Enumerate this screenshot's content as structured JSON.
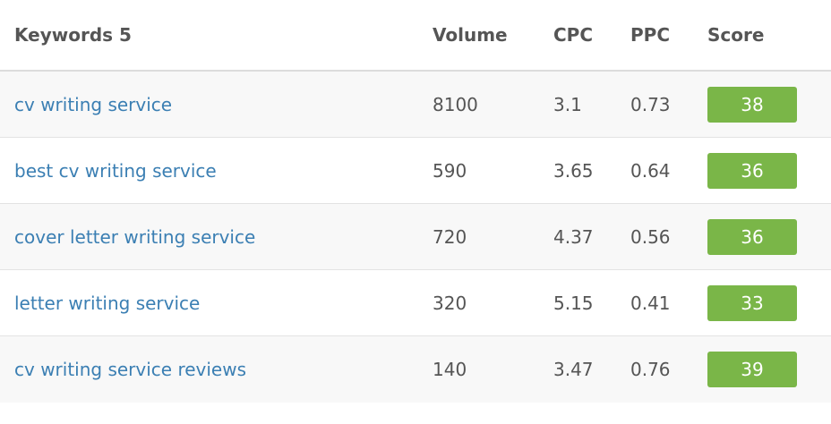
{
  "header": {
    "keywords": "Keywords 5",
    "volume": "Volume",
    "cpc": "CPC",
    "ppc": "PPC",
    "score": "Score"
  },
  "rows": [
    {
      "keyword": "cv writing service",
      "volume": "8100",
      "cpc": "3.1",
      "ppc": "0.73",
      "score": "38"
    },
    {
      "keyword": "best cv writing service",
      "volume": "590",
      "cpc": "3.65",
      "ppc": "0.64",
      "score": "36"
    },
    {
      "keyword": "cover letter writing service",
      "volume": "720",
      "cpc": "4.37",
      "ppc": "0.56",
      "score": "36"
    },
    {
      "keyword": "letter writing service",
      "volume": "320",
      "cpc": "5.15",
      "ppc": "0.41",
      "score": "33"
    },
    {
      "keyword": "cv writing service reviews",
      "volume": "140",
      "cpc": "3.47",
      "ppc": "0.76",
      "score": "39"
    }
  ],
  "colors": {
    "link": "#3b7fb3",
    "score_badge": "#7ab648",
    "row_alt": "#f8f8f8"
  }
}
